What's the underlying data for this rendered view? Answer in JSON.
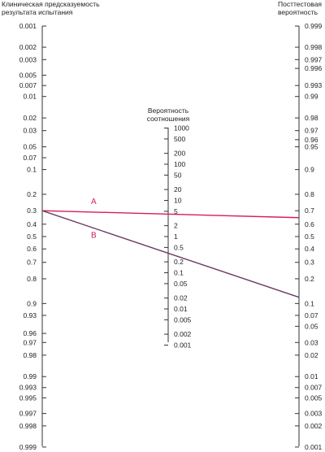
{
  "titles": {
    "left": "Клиническая предсказуемость результата испытания",
    "middle": "Вероятность соотношения",
    "right": "Посттестовая вероятность"
  },
  "left_axis_ticks": [
    "0.001",
    "0.002",
    "0.003",
    "0.005",
    "0.007",
    "0.01",
    "0.02",
    "0.03",
    "0.05",
    "0.07",
    "0.1",
    "0.2",
    "0.3",
    "0.4",
    "0.5",
    "0.6",
    "0.7",
    "0.8",
    "0.9",
    "0.93",
    "0.96",
    "0.97",
    "0.98",
    "0.99",
    "0.993",
    "0.995",
    "0.997",
    "0.998",
    "0.999"
  ],
  "middle_axis_ticks": [
    "1000",
    "500",
    "200",
    "100",
    "50",
    "20",
    "10",
    "5",
    "2",
    "1",
    "0.5",
    "0.2",
    "0.1",
    "0.05",
    "0.02",
    "0.01",
    "0.005",
    "0.002",
    "0.001"
  ],
  "right_axis_ticks": [
    "0.999",
    "0.998",
    "0.997",
    "0.996",
    "0.993",
    "0.99",
    "0.98",
    "0.97",
    "0.96",
    "0.95",
    "0.9",
    "0.8",
    "0.7",
    "0.6",
    "0.5",
    "0.4",
    "0.3",
    "0.2",
    "0.1",
    "0.07",
    "0.05",
    "0.03",
    "0.02",
    "0.01",
    "0.007",
    "0.005",
    "0.003",
    "0.002",
    "0.001"
  ],
  "lines": [
    {
      "label": "A",
      "color": "#d81b60",
      "from": "0.3",
      "to": "0.65"
    },
    {
      "label": "B",
      "color": "#6d3a60",
      "from": "0.3",
      "to": "0.12"
    }
  ]
}
